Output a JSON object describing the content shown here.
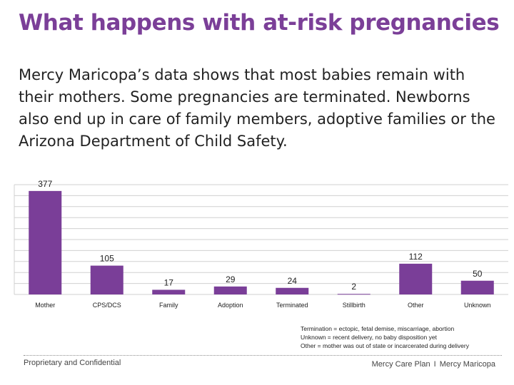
{
  "slide": {
    "title": "What happens with at-risk pregnancies",
    "body": "Mercy Maricopa’s data shows that most babies remain with their mothers. Some pregnancies are terminated. Newborns also end up in care of family members, adoptive families or the Arizona Department of Child Safety.",
    "notes": [
      "Termination = ectopic, fetal demise, miscarriage, abortion",
      "Unknown = recent delivery, no baby disposition yet",
      "Other = mother was out of state or incarcerated during delivery"
    ],
    "footer": {
      "left": "Proprietary and Confidential",
      "right_a": "Mercy Care Plan",
      "right_sep": "I",
      "right_b": "Mercy Maricopa"
    }
  },
  "colors": {
    "title": "#7b3f98",
    "bar": "#7a3e98",
    "grid": "#d0d0d0"
  },
  "chart_data": {
    "type": "bar",
    "categories": [
      "Mother",
      "CPS/DCS",
      "Family",
      "Adoption",
      "Terminated",
      "Stillbirth",
      "Other",
      "Unknown"
    ],
    "values": [
      377,
      105,
      17,
      29,
      24,
      2,
      112,
      50
    ],
    "data_labels": [
      "377",
      "105",
      "17",
      "29",
      "24",
      "2",
      "112",
      "50"
    ],
    "title": "",
    "xlabel": "",
    "ylabel": "",
    "ylim": [
      0,
      400
    ],
    "grid": true,
    "legend": "none"
  }
}
